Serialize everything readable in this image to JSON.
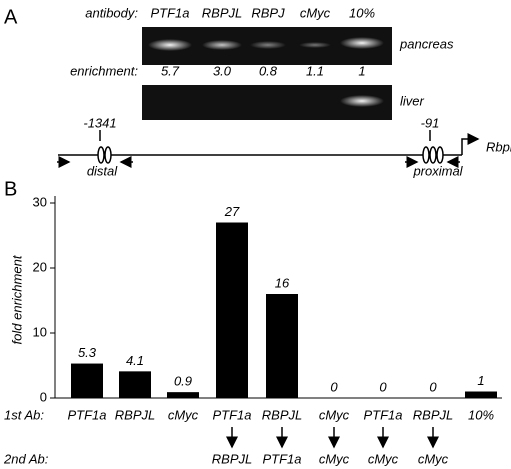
{
  "panel_a": {
    "label": "A",
    "antibody_label": "antibody:",
    "lanes": [
      "PTF1a",
      "RBPJL",
      "RBPJ",
      "cMyc",
      "10%"
    ],
    "tissues": [
      "pancreas",
      "liver"
    ],
    "enrichment_label": "enrichment:",
    "enrichment": [
      "5.7",
      "3.0",
      "0.8",
      "1.1",
      "1"
    ],
    "map": {
      "distal_position": "-1341",
      "distal": "distal",
      "proximal_position": "-91",
      "proximal": "proximal",
      "gene": "Rbpl"
    }
  },
  "chart_data": {
    "type": "bar",
    "panel_label": "B",
    "y_label": "fold enrichment",
    "row_labels": [
      "1st Ab:",
      "2nd Ab:"
    ],
    "categories": [
      "PTF1a",
      "RBPJL",
      "cMyc",
      "PTF1a",
      "RBPJL",
      "cMyc",
      "PTF1a",
      "RBPJL",
      "10%"
    ],
    "second_antibody": [
      null,
      null,
      null,
      "RBPJL",
      "PTF1a",
      "cMyc",
      "cMyc",
      "cMyc",
      null
    ],
    "values": [
      5.3,
      4.1,
      0.9,
      27,
      16,
      0,
      0,
      0,
      1
    ],
    "color": "#000000",
    "ylim": [
      0,
      30
    ],
    "yticks": [
      0,
      10,
      20,
      30
    ]
  }
}
